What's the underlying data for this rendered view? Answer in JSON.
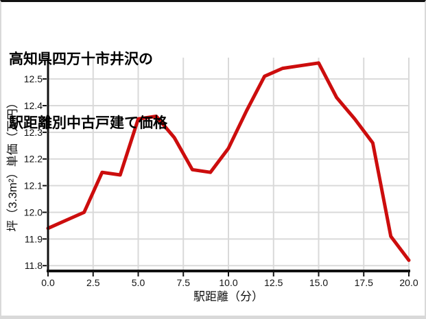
{
  "title": {
    "line1": "高知県四万十市井沢の",
    "line2": "駅距離別中古戸建て価格"
  },
  "chart_data": {
    "type": "line",
    "title": "高知県四万十市井沢の駅距離別中古戸建て価格",
    "xlabel": "駅距離（分）",
    "ylabel": "坪（3.3m²）単価（万円）",
    "x": [
      0,
      1,
      2,
      3,
      4,
      5,
      6,
      7,
      8,
      9,
      10,
      11,
      12,
      13,
      14,
      15,
      16,
      17,
      18,
      19,
      20
    ],
    "y": [
      11.94,
      11.97,
      12.0,
      12.15,
      12.14,
      12.35,
      12.36,
      12.28,
      12.16,
      12.15,
      12.24,
      12.38,
      12.51,
      12.54,
      12.55,
      12.56,
      12.43,
      12.35,
      12.26,
      11.91,
      11.82
    ],
    "xlim": [
      0,
      20
    ],
    "ylim": [
      11.78,
      12.58
    ],
    "xtick_values": [
      0,
      2.5,
      5,
      7.5,
      10,
      12.5,
      15,
      17.5,
      20
    ],
    "xtick_labels": [
      "0.0",
      "2.5",
      "5.0",
      "7.5",
      "10.0",
      "12.5",
      "15.0",
      "17.5",
      "20.0"
    ],
    "ytick_values": [
      11.8,
      11.9,
      12.0,
      12.1,
      12.2,
      12.3,
      12.4,
      12.5
    ],
    "ytick_labels": [
      "11.8",
      "11.9",
      "12.0",
      "12.1",
      "12.2",
      "12.3",
      "12.4",
      "12.5"
    ],
    "grid": true,
    "legend": false,
    "colors": {
      "line": "#cc0d0d",
      "grid": "#d9d9d9",
      "axis": "#111111",
      "text": "#111111",
      "background": "#ffffff",
      "card_border": "#d9d9d9",
      "card_top_border": "#111111"
    }
  }
}
